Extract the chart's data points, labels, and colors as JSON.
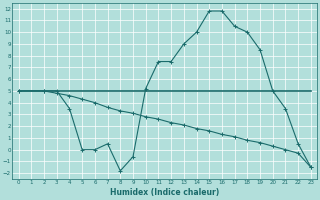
{
  "xlabel": "Humidex (Indice chaleur)",
  "background_color": "#b2dfdb",
  "grid_color": "#ffffff",
  "line_color": "#1a6b6b",
  "xlim": [
    -0.5,
    23.5
  ],
  "ylim": [
    -2.5,
    12.5
  ],
  "xticks": [
    0,
    1,
    2,
    3,
    4,
    5,
    6,
    7,
    8,
    9,
    10,
    11,
    12,
    13,
    14,
    15,
    16,
    17,
    18,
    19,
    20,
    21,
    22,
    23
  ],
  "yticks": [
    -2,
    -1,
    0,
    1,
    2,
    3,
    4,
    5,
    6,
    7,
    8,
    9,
    10,
    11,
    12
  ],
  "series1_x": [
    0,
    1,
    2,
    3,
    4,
    5,
    6,
    7,
    8,
    9,
    10,
    11,
    12,
    13,
    14,
    15,
    16,
    17,
    18,
    19,
    20,
    21,
    22,
    23
  ],
  "series1_y": [
    5,
    5,
    5,
    5,
    5,
    5,
    5,
    5,
    5,
    5,
    5,
    5,
    5,
    5,
    5,
    5,
    5,
    5,
    5,
    5,
    5,
    5,
    5,
    5
  ],
  "series2_x": [
    0,
    2,
    3,
    4,
    5,
    6,
    7,
    8,
    9,
    10,
    11,
    12,
    13,
    14,
    15,
    16,
    17,
    18,
    19,
    20,
    21,
    22,
    23
  ],
  "series2_y": [
    5,
    5,
    5,
    3.5,
    0.0,
    0.0,
    0.5,
    -1.8,
    -0.6,
    5.2,
    7.5,
    7.5,
    9.0,
    10.0,
    11.8,
    11.8,
    10.5,
    10.0,
    8.5,
    5.0,
    3.5,
    0.5,
    -1.5
  ],
  "series3_x": [
    0,
    2,
    3,
    4,
    5,
    6,
    7,
    8,
    9,
    10,
    11,
    12,
    13,
    14,
    15,
    16,
    17,
    18,
    19,
    20,
    21,
    22,
    23
  ],
  "series3_y": [
    5,
    5,
    4.8,
    4.6,
    4.3,
    4.0,
    3.6,
    3.3,
    3.1,
    2.8,
    2.6,
    2.3,
    2.1,
    1.8,
    1.6,
    1.3,
    1.1,
    0.8,
    0.6,
    0.3,
    0.0,
    -0.3,
    -1.5
  ]
}
